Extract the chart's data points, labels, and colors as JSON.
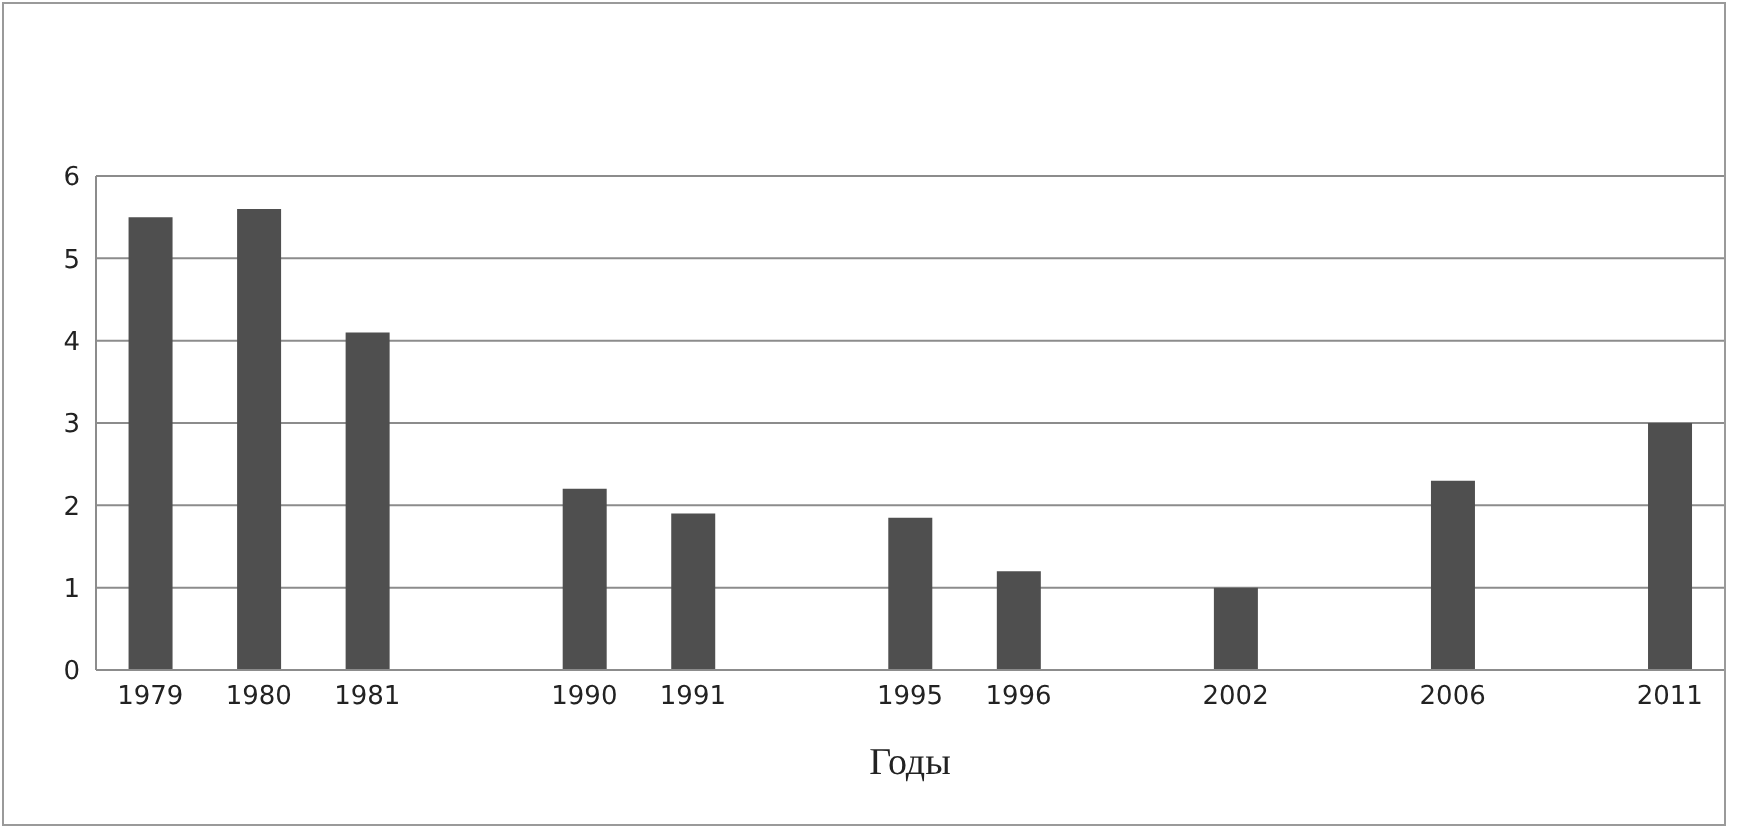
{
  "chart_data": {
    "type": "bar",
    "xlabel": "Годы",
    "categories": [
      "1979",
      "1980",
      "1981",
      null,
      "1990",
      "1991",
      null,
      "1995",
      "1996",
      null,
      "2002",
      null,
      "2006",
      null,
      "2011"
    ],
    "values": [
      5.5,
      5.6,
      4.1,
      null,
      2.2,
      1.9,
      null,
      1.85,
      1.2,
      null,
      1.0,
      null,
      2.3,
      null,
      3.0
    ],
    "color": "#4f4f4f",
    "ylim": [
      0,
      6
    ],
    "yticks": [
      0,
      1,
      2,
      3,
      4,
      5,
      6
    ],
    "grid": "y",
    "legend": false
  }
}
